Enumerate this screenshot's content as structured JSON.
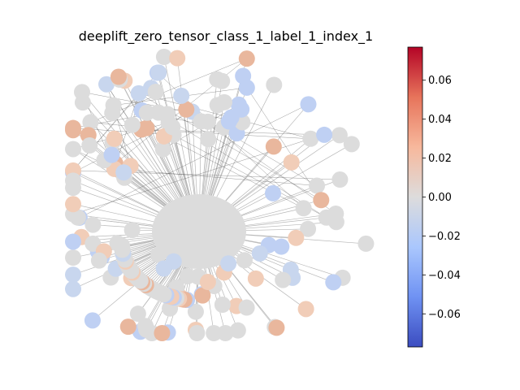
{
  "figure": {
    "title": "deeplift_zero_tensor_class_1_label_1_index_1",
    "graph": {
      "node_color_default": "#dcdcdc",
      "edge_color": "#b8b8b8",
      "dense_edge_color": "#555555"
    },
    "colorbar": {
      "cmap": "coolwarm",
      "vmin": -0.077,
      "vmax": 0.077,
      "ticks": [
        0.06,
        0.04,
        0.02,
        0.0,
        -0.02,
        -0.04,
        -0.06
      ],
      "tick_labels": [
        "0.06",
        "0.04",
        "0.02",
        "0.00",
        "−0.02",
        "−0.04",
        "−0.06"
      ],
      "colors": [
        "#3b4cc0",
        "#6f92f3",
        "#aac7fd",
        "#dddcdc",
        "#f7b89c",
        "#e7745b",
        "#b40426"
      ]
    }
  }
}
